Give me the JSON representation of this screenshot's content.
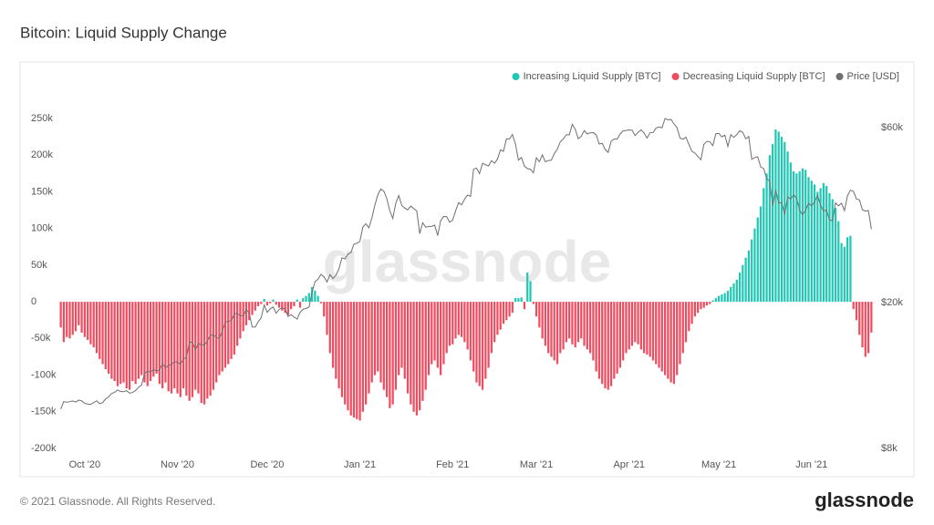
{
  "chart_data": {
    "type": "bar",
    "title": "Bitcoin: Liquid Supply Change",
    "watermark": "glassnode",
    "footer": "© 2021 Glassnode. All Rights Reserved.",
    "brand": "glassnode",
    "legend": "top-right",
    "grid": false,
    "ylim": [
      -200000,
      250000
    ],
    "yticks": [
      {
        "value": -200000,
        "label": "-200k"
      },
      {
        "value": -150000,
        "label": "-150k"
      },
      {
        "value": -100000,
        "label": "-100k"
      },
      {
        "value": -50000,
        "label": "-50k"
      },
      0,
      {
        "value": 50000,
        "label": "50k"
      },
      {
        "value": 100000,
        "label": "100k"
      },
      {
        "value": 150000,
        "label": "150k"
      },
      {
        "value": 200000,
        "label": "200k"
      },
      {
        "value": 250000,
        "label": "250k"
      }
    ],
    "y2lim": [
      8000,
      63500
    ],
    "y2scale": "log",
    "y2ticks": [
      {
        "value": 8000,
        "label": "$8k"
      },
      {
        "value": 20000,
        "label": "$20k"
      },
      {
        "value": 60000,
        "label": "$60k"
      }
    ],
    "categories": [
      null,
      null,
      null,
      null,
      null,
      null,
      null,
      null,
      "Oct '20",
      null,
      null,
      null,
      null,
      null,
      null,
      null,
      null,
      null,
      null,
      null,
      null,
      null,
      null,
      null,
      null,
      null,
      null,
      null,
      null,
      null,
      null,
      null,
      null,
      null,
      null,
      null,
      null,
      null,
      null,
      "Nov '20",
      null,
      null,
      null,
      null,
      null,
      null,
      null,
      null,
      null,
      null,
      null,
      null,
      null,
      null,
      null,
      null,
      null,
      null,
      null,
      null,
      null,
      null,
      null,
      null,
      null,
      null,
      null,
      null,
      null,
      "Dec '20",
      null,
      null,
      null,
      null,
      null,
      null,
      null,
      null,
      null,
      null,
      null,
      null,
      null,
      null,
      null,
      null,
      null,
      null,
      null,
      null,
      null,
      null,
      null,
      null,
      null,
      null,
      null,
      null,
      null,
      null,
      "Jan '21",
      null,
      null,
      null,
      null,
      null,
      null,
      null,
      null,
      null,
      null,
      null,
      null,
      null,
      null,
      null,
      null,
      null,
      null,
      null,
      null,
      null,
      null,
      null,
      null,
      null,
      null,
      null,
      null,
      null,
      null,
      "Feb '21",
      null,
      null,
      null,
      null,
      null,
      null,
      null,
      null,
      null,
      null,
      null,
      null,
      null,
      null,
      null,
      null,
      null,
      null,
      null,
      null,
      null,
      null,
      null,
      null,
      null,
      null,
      null,
      "Mar '21",
      null,
      null,
      null,
      null,
      null,
      null,
      null,
      null,
      null,
      null,
      null,
      null,
      null,
      null,
      null,
      null,
      null,
      null,
      null,
      null,
      null,
      null,
      null,
      null,
      null,
      null,
      null,
      null,
      null,
      null,
      "Apr '21",
      null,
      null,
      null,
      null,
      null,
      null,
      null,
      null,
      null,
      null,
      null,
      null,
      null,
      null,
      null,
      null,
      null,
      null,
      null,
      null,
      null,
      null,
      null,
      null,
      null,
      null,
      null,
      null,
      null,
      "May '21",
      null,
      null,
      null,
      null,
      null,
      null,
      null,
      null,
      null,
      null,
      null,
      null,
      null,
      null,
      null,
      null,
      null,
      null,
      null,
      null,
      null,
      null,
      null,
      null,
      null,
      null,
      null,
      null,
      null,
      null,
      "Jun '21",
      null,
      null,
      null,
      null,
      null,
      null,
      null,
      null,
      null,
      null,
      null,
      null,
      null,
      null,
      null,
      null,
      null,
      null,
      null,
      null
    ],
    "series": [
      {
        "name": "Increasing Liquid Supply [BTC]",
        "color": "#1fc7b4",
        "values": [
          null,
          null,
          null,
          null,
          null,
          null,
          null,
          null,
          null,
          null,
          null,
          null,
          null,
          null,
          null,
          null,
          null,
          null,
          null,
          null,
          null,
          null,
          null,
          null,
          null,
          null,
          null,
          null,
          null,
          null,
          null,
          null,
          null,
          null,
          null,
          null,
          null,
          null,
          null,
          null,
          null,
          null,
          null,
          null,
          null,
          null,
          null,
          null,
          null,
          null,
          null,
          null,
          null,
          null,
          null,
          null,
          null,
          null,
          null,
          null,
          null,
          null,
          null,
          null,
          null,
          null,
          null,
          null,
          4000,
          null,
          null,
          3000,
          null,
          null,
          null,
          null,
          null,
          null,
          null,
          3000,
          null,
          5000,
          8000,
          12000,
          20000,
          15000,
          8000,
          null,
          null,
          null,
          null,
          null,
          null,
          null,
          null,
          null,
          null,
          null,
          null,
          null,
          null,
          null,
          null,
          null,
          null,
          null,
          null,
          null,
          null,
          null,
          null,
          null,
          null,
          null,
          null,
          null,
          null,
          null,
          null,
          null,
          null,
          null,
          null,
          null,
          null,
          null,
          null,
          null,
          null,
          null,
          null,
          null,
          null,
          null,
          null,
          null,
          null,
          null,
          null,
          null,
          null,
          null,
          null,
          null,
          null,
          null,
          null,
          null,
          null,
          null,
          null,
          null,
          5000,
          5000,
          6000,
          null,
          40000,
          28000,
          null,
          null,
          null,
          null,
          null,
          null,
          null,
          null,
          null,
          null,
          null,
          null,
          null,
          null,
          null,
          null,
          null,
          null,
          null,
          null,
          null,
          null,
          null,
          null,
          null,
          null,
          null,
          null,
          null,
          null,
          null,
          null,
          null,
          null,
          null,
          null,
          null,
          null,
          null,
          null,
          null,
          null,
          null,
          null,
          null,
          null,
          null,
          null,
          null,
          null,
          null,
          null,
          null,
          null,
          null,
          null,
          null,
          null,
          null,
          null,
          2000,
          5000,
          8000,
          10000,
          12000,
          15000,
          20000,
          25000,
          30000,
          40000,
          50000,
          60000,
          70000,
          85000,
          100000,
          115000,
          130000,
          155000,
          175000,
          200000,
          215000,
          235000,
          232000,
          225000,
          218000,
          205000,
          190000,
          178000,
          175000,
          178000,
          182000,
          180000,
          170000,
          165000,
          160000,
          150000,
          155000,
          162000,
          158000,
          148000,
          140000,
          128000,
          110000,
          80000,
          75000,
          88000,
          90000,
          null,
          null,
          null,
          null,
          null,
          null,
          null
        ]
      },
      {
        "name": "Decreasing Liquid Supply [BTC]",
        "color": "#f04b5f",
        "values": [
          -35000,
          -55000,
          -48000,
          -50000,
          -45000,
          -40000,
          -32000,
          -42000,
          -48000,
          -52000,
          -58000,
          -62000,
          -70000,
          -78000,
          -85000,
          -92000,
          -98000,
          -105000,
          -108000,
          -115000,
          -112000,
          -110000,
          -118000,
          -120000,
          -108000,
          -112000,
          -105000,
          -100000,
          -110000,
          -115000,
          -108000,
          -102000,
          -98000,
          -112000,
          -118000,
          -110000,
          -122000,
          -125000,
          -118000,
          -125000,
          -130000,
          -118000,
          -128000,
          -135000,
          -130000,
          -120000,
          -125000,
          -138000,
          -140000,
          -132000,
          -128000,
          -120000,
          -110000,
          -100000,
          -95000,
          -90000,
          -85000,
          -78000,
          -72000,
          -60000,
          -50000,
          -40000,
          -32000,
          -25000,
          -18000,
          -12000,
          -6000,
          -3000,
          null,
          -5000,
          -2000,
          null,
          -4000,
          -8000,
          -12000,
          -15000,
          -18000,
          -10000,
          -6000,
          null,
          -8000,
          null,
          null,
          null,
          null,
          null,
          null,
          -2000,
          -20000,
          -45000,
          -70000,
          -90000,
          -105000,
          -118000,
          -130000,
          -140000,
          -148000,
          -155000,
          -158000,
          -160000,
          -162000,
          -150000,
          -140000,
          -125000,
          -110000,
          -100000,
          -95000,
          -110000,
          -120000,
          -130000,
          -145000,
          -140000,
          -120000,
          -100000,
          -90000,
          -105000,
          -125000,
          -140000,
          -150000,
          -155000,
          -148000,
          -135000,
          -120000,
          -100000,
          -85000,
          -80000,
          -90000,
          -100000,
          -85000,
          -70000,
          -60000,
          -58000,
          -50000,
          -45000,
          -48000,
          -55000,
          -65000,
          -80000,
          -95000,
          -110000,
          -115000,
          -120000,
          -105000,
          -90000,
          -70000,
          -55000,
          -45000,
          -38000,
          -30000,
          -25000,
          -20000,
          -15000,
          null,
          null,
          null,
          -10000,
          null,
          null,
          -3000,
          -20000,
          -35000,
          -50000,
          -60000,
          -70000,
          -75000,
          -80000,
          -85000,
          -70000,
          -65000,
          -55000,
          -50000,
          -58000,
          -62000,
          -55000,
          -50000,
          -60000,
          -65000,
          -70000,
          -80000,
          -95000,
          -105000,
          -112000,
          -118000,
          -120000,
          -115000,
          -105000,
          -98000,
          -90000,
          -80000,
          -70000,
          -65000,
          -60000,
          -55000,
          -58000,
          -65000,
          -70000,
          -72000,
          -75000,
          -80000,
          -85000,
          -90000,
          -95000,
          -100000,
          -105000,
          -110000,
          -112000,
          -100000,
          -85000,
          -70000,
          -55000,
          -40000,
          -30000,
          -20000,
          -15000,
          -10000,
          -8000,
          -5000,
          -3000,
          null,
          null,
          null,
          null,
          null,
          null,
          null,
          null,
          null,
          null,
          null,
          null,
          null,
          null,
          null,
          null,
          null,
          null,
          null,
          null,
          null,
          null,
          null,
          null,
          null,
          null,
          null,
          null,
          null,
          null,
          null,
          null,
          null,
          null,
          null,
          null,
          null,
          null,
          null,
          null,
          null,
          null,
          null,
          null,
          null,
          null,
          null,
          -10000,
          -25000,
          -45000,
          -62000,
          -75000,
          -70000,
          -42000
        ]
      },
      {
        "name": "Price [USD]",
        "color": "#6f6f6f",
        "axis": "y2",
        "values": [
          10240,
          10740,
          10690,
          10730,
          10780,
          10700,
          10840,
          10780,
          10620,
          10570,
          10550,
          10670,
          10790,
          10600,
          10670,
          10920,
          11060,
          11300,
          11380,
          11550,
          11430,
          11420,
          11500,
          11320,
          11370,
          11510,
          11750,
          11910,
          12820,
          12990,
          12930,
          13130,
          13030,
          13070,
          13650,
          13280,
          13460,
          13560,
          13800,
          13760,
          13550,
          14030,
          14150,
          15590,
          15580,
          14830,
          15480,
          15330,
          15310,
          15700,
          16280,
          16320,
          16070,
          15960,
          16720,
          17650,
          17800,
          17820,
          18620,
          18680,
          18400,
          18370,
          19160,
          18720,
          17150,
          17140,
          17720,
          18180,
          19700,
          18800,
          19210,
          19450,
          18700,
          19150,
          19360,
          19170,
          18320,
          18540,
          18250,
          18030,
          18800,
          19170,
          19270,
          19440,
          21310,
          22800,
          23140,
          23870,
          23480,
          22750,
          23830,
          23250,
          23730,
          24710,
          26490,
          26280,
          27080,
          27360,
          28840,
          29000,
          29370,
          32130,
          32780,
          31970,
          33990,
          36820,
          39350,
          40790,
          40250,
          38350,
          35570,
          33920,
          37320,
          39150,
          36770,
          36180,
          35790,
          36630,
          36070,
          35550,
          30820,
          33000,
          32080,
          32260,
          32250,
          32510,
          30430,
          33460,
          34320,
          34270,
          33110,
          33530,
          35510,
          37470,
          36930,
          38290,
          39270,
          38900,
          46200,
          46480,
          44920,
          47910,
          47500,
          47160,
          48720,
          47940,
          49200,
          52150,
          51680,
          55890,
          55840,
          57410,
          54090,
          48890,
          49680,
          47080,
          46340,
          46190,
          45140,
          49630,
          48380,
          50540,
          48380,
          48760,
          48880,
          50970,
          52380,
          54880,
          55850,
          57330,
          57330,
          61240,
          59360,
          55900,
          56800,
          58870,
          57650,
          58030,
          58100,
          57350,
          54080,
          54340,
          52300,
          51300,
          55030,
          55840,
          55780,
          57620,
          58780,
          58920,
          59060,
          59000,
          57060,
          58200,
          59120,
          57970,
          56150,
          58090,
          58100,
          59790,
          60200,
          59890,
          63500,
          62970,
          63110,
          61400,
          60000,
          56200,
          55720,
          56470,
          53900,
          51700,
          51090,
          50050,
          49000,
          54000,
          55030,
          54830,
          53550,
          57750,
          57800,
          56600,
          57200,
          53300,
          57400,
          56400,
          57400,
          58800,
          58200,
          55900,
          56700,
          49150,
          49700,
          49900,
          46800,
          46400,
          43500,
          42900,
          36700,
          40600,
          37300,
          37500,
          34700,
          38800,
          38300,
          39300,
          38500,
          35700,
          34700,
          35700,
          37300,
          36700,
          37600,
          39200,
          36900,
          35500,
          35800,
          33600,
          33400,
          37400,
          36700,
          37300,
          35600,
          39100,
          40500,
          40200,
          38300,
          38100,
          35800,
          35500,
          35600,
          31700
        ]
      }
    ]
  }
}
